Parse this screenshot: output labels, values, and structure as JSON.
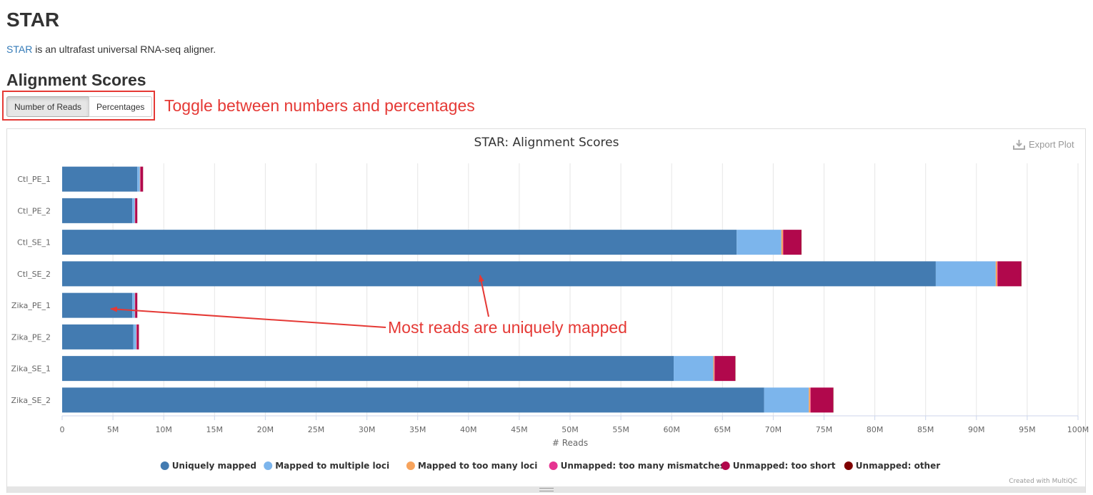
{
  "header": {
    "title": "STAR",
    "intro_link": "STAR",
    "intro_rest": " is an ultrafast universal RNA-seq aligner."
  },
  "section": {
    "title": "Alignment Scores",
    "toggle": {
      "active_label": "Number of Reads",
      "inactive_label": "Percentages"
    },
    "toggle_note": "Toggle between numbers and percentages"
  },
  "plot": {
    "export_label": "Export Plot",
    "export_icon": "download-icon",
    "credit": "Created with MultiQC"
  },
  "chart_data": {
    "type": "bar",
    "orientation": "horizontal",
    "stacked": true,
    "title": "STAR: Alignment Scores",
    "xlabel": "# Reads",
    "ylabel": "",
    "xlim": [
      0,
      100000000
    ],
    "xticks": [
      {
        "value": 0,
        "label": "0"
      },
      {
        "value": 5000000,
        "label": "5M"
      },
      {
        "value": 10000000,
        "label": "10M"
      },
      {
        "value": 15000000,
        "label": "15M"
      },
      {
        "value": 20000000,
        "label": "20M"
      },
      {
        "value": 25000000,
        "label": "25M"
      },
      {
        "value": 30000000,
        "label": "30M"
      },
      {
        "value": 35000000,
        "label": "35M"
      },
      {
        "value": 40000000,
        "label": "40M"
      },
      {
        "value": 45000000,
        "label": "45M"
      },
      {
        "value": 50000000,
        "label": "50M"
      },
      {
        "value": 55000000,
        "label": "55M"
      },
      {
        "value": 60000000,
        "label": "60M"
      },
      {
        "value": 65000000,
        "label": "65M"
      },
      {
        "value": 70000000,
        "label": "70M"
      },
      {
        "value": 75000000,
        "label": "75M"
      },
      {
        "value": 80000000,
        "label": "80M"
      },
      {
        "value": 85000000,
        "label": "85M"
      },
      {
        "value": 90000000,
        "label": "90M"
      },
      {
        "value": 95000000,
        "label": "95M"
      },
      {
        "value": 100000000,
        "label": "100M"
      }
    ],
    "grid": true,
    "legend_position": "bottom",
    "categories": [
      "Ctl_PE_1",
      "Ctl_PE_2",
      "Ctl_SE_1",
      "Ctl_SE_2",
      "Zika_PE_1",
      "Zika_PE_2",
      "Zika_SE_1",
      "Zika_SE_2"
    ],
    "series": [
      {
        "name": "Uniquely mapped",
        "color": "#437bb1",
        "values": [
          7400000,
          6900000,
          66400000,
          86000000,
          6900000,
          7000000,
          60200000,
          69100000
        ]
      },
      {
        "name": "Mapped to multiple loci",
        "color": "#7cb5ec",
        "values": [
          250000,
          250000,
          4400000,
          5900000,
          250000,
          300000,
          3900000,
          4400000
        ]
      },
      {
        "name": "Mapped to too many loci",
        "color": "#f7a35c",
        "values": [
          30000,
          20000,
          150000,
          150000,
          20000,
          30000,
          100000,
          150000
        ]
      },
      {
        "name": "Unmapped: too many mismatches",
        "color": "#e63491",
        "values": [
          30000,
          20000,
          50000,
          50000,
          20000,
          20000,
          50000,
          50000
        ]
      },
      {
        "name": "Unmapped: too short",
        "color": "#b1084c",
        "values": [
          250000,
          200000,
          1750000,
          2300000,
          200000,
          200000,
          2000000,
          2200000
        ]
      },
      {
        "name": "Unmapped: other",
        "color": "#7f0000",
        "values": [
          10000,
          10000,
          30000,
          40000,
          10000,
          10000,
          30000,
          30000
        ]
      }
    ],
    "annotations": [
      {
        "text": "Most reads are uniquely mapped",
        "color": "#e53935"
      }
    ]
  }
}
